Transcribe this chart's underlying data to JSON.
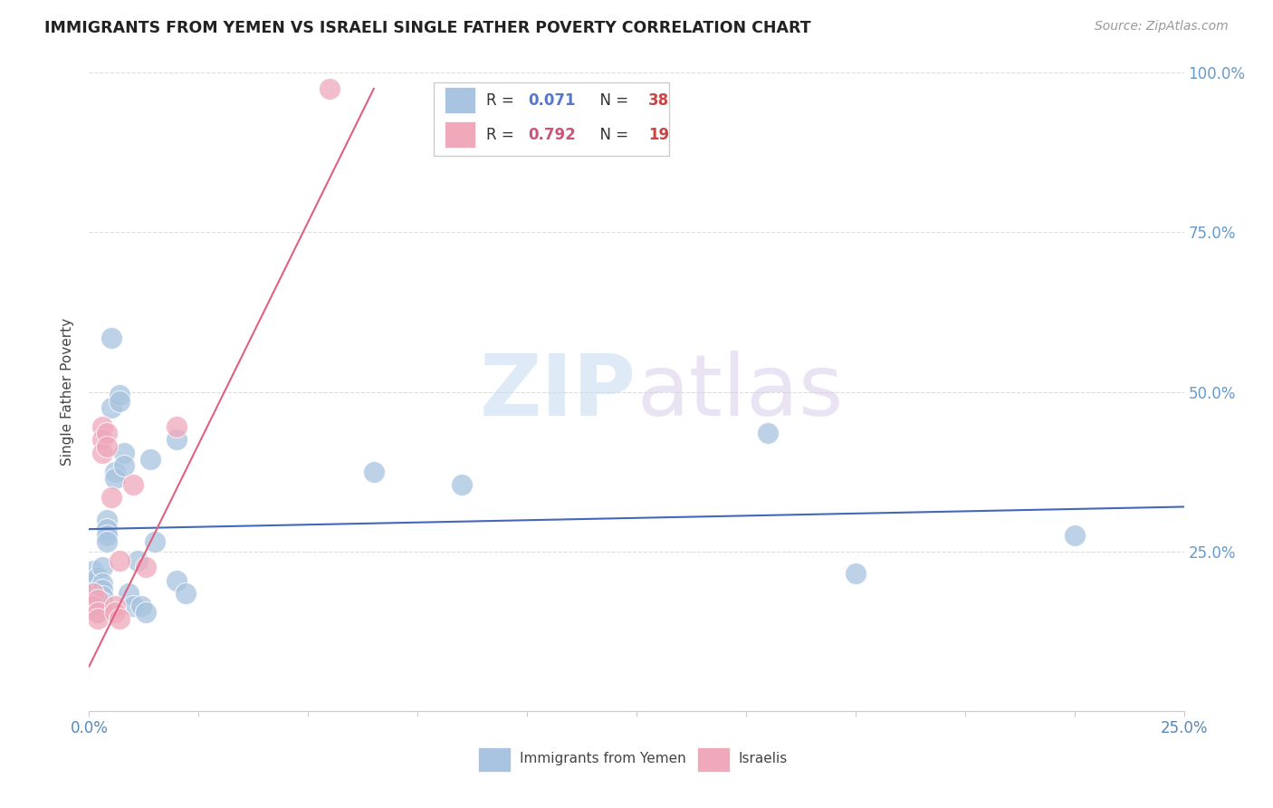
{
  "title": "IMMIGRANTS FROM YEMEN VS ISRAELI SINGLE FATHER POVERTY CORRELATION CHART",
  "source": "Source: ZipAtlas.com",
  "ylabel": "Single Father Poverty",
  "watermark_zip": "ZIP",
  "watermark_atlas": "atlas",
  "xlim": [
    0.0,
    0.25
  ],
  "ylim": [
    0.0,
    1.0
  ],
  "xtick_vals": [
    0.0,
    0.025,
    0.05,
    0.075,
    0.1,
    0.125,
    0.15,
    0.175,
    0.2,
    0.225,
    0.25
  ],
  "xtick_labels_show": {
    "0.0": "0.0%",
    "0.25": "25.0%"
  },
  "ytick_vals_right": [
    0.25,
    0.5,
    0.75,
    1.0
  ],
  "ytick_labels_right": [
    "25.0%",
    "50.0%",
    "75.0%",
    "100.0%"
  ],
  "blue_R": 0.071,
  "blue_N": 38,
  "pink_R": 0.792,
  "pink_N": 19,
  "blue_color": "#a8c4e0",
  "pink_color": "#f0a8bb",
  "blue_line_color": "#4466bb",
  "pink_line_color": "#e06080",
  "blue_scatter": [
    [
      0.001,
      0.22
    ],
    [
      0.001,
      0.2
    ],
    [
      0.002,
      0.21
    ],
    [
      0.002,
      0.19
    ],
    [
      0.002,
      0.17
    ],
    [
      0.002,
      0.155
    ],
    [
      0.003,
      0.225
    ],
    [
      0.003,
      0.2
    ],
    [
      0.003,
      0.19
    ],
    [
      0.003,
      0.18
    ],
    [
      0.003,
      0.17
    ],
    [
      0.004,
      0.3
    ],
    [
      0.004,
      0.285
    ],
    [
      0.004,
      0.275
    ],
    [
      0.004,
      0.265
    ],
    [
      0.005,
      0.585
    ],
    [
      0.005,
      0.475
    ],
    [
      0.006,
      0.375
    ],
    [
      0.006,
      0.365
    ],
    [
      0.007,
      0.495
    ],
    [
      0.007,
      0.485
    ],
    [
      0.008,
      0.405
    ],
    [
      0.008,
      0.385
    ],
    [
      0.009,
      0.185
    ],
    [
      0.01,
      0.165
    ],
    [
      0.011,
      0.235
    ],
    [
      0.012,
      0.165
    ],
    [
      0.013,
      0.155
    ],
    [
      0.014,
      0.395
    ],
    [
      0.015,
      0.265
    ],
    [
      0.02,
      0.425
    ],
    [
      0.02,
      0.205
    ],
    [
      0.022,
      0.185
    ],
    [
      0.065,
      0.375
    ],
    [
      0.085,
      0.355
    ],
    [
      0.155,
      0.435
    ],
    [
      0.175,
      0.215
    ],
    [
      0.225,
      0.275
    ]
  ],
  "pink_scatter": [
    [
      0.001,
      0.185
    ],
    [
      0.001,
      0.165
    ],
    [
      0.002,
      0.175
    ],
    [
      0.002,
      0.155
    ],
    [
      0.002,
      0.145
    ],
    [
      0.003,
      0.445
    ],
    [
      0.003,
      0.425
    ],
    [
      0.003,
      0.405
    ],
    [
      0.004,
      0.435
    ],
    [
      0.004,
      0.415
    ],
    [
      0.005,
      0.335
    ],
    [
      0.006,
      0.165
    ],
    [
      0.006,
      0.155
    ],
    [
      0.007,
      0.235
    ],
    [
      0.007,
      0.145
    ],
    [
      0.01,
      0.355
    ],
    [
      0.013,
      0.225
    ],
    [
      0.02,
      0.445
    ],
    [
      0.055,
      0.975
    ]
  ],
  "blue_line_x": [
    0.0,
    0.25
  ],
  "blue_line_y": [
    0.285,
    0.32
  ],
  "pink_line_x": [
    0.0,
    0.065
  ],
  "pink_line_y": [
    0.07,
    0.975
  ],
  "background_color": "#ffffff",
  "grid_color": "#dddddd",
  "right_tick_color": "#6699cc",
  "legend_border_color": "#cccccc",
  "legend_R_color_blue": "#5577cc",
  "legend_N_color_blue": "#cc4444",
  "legend_R_color_pink": "#cc5577",
  "legend_N_color_pink": "#cc4444"
}
